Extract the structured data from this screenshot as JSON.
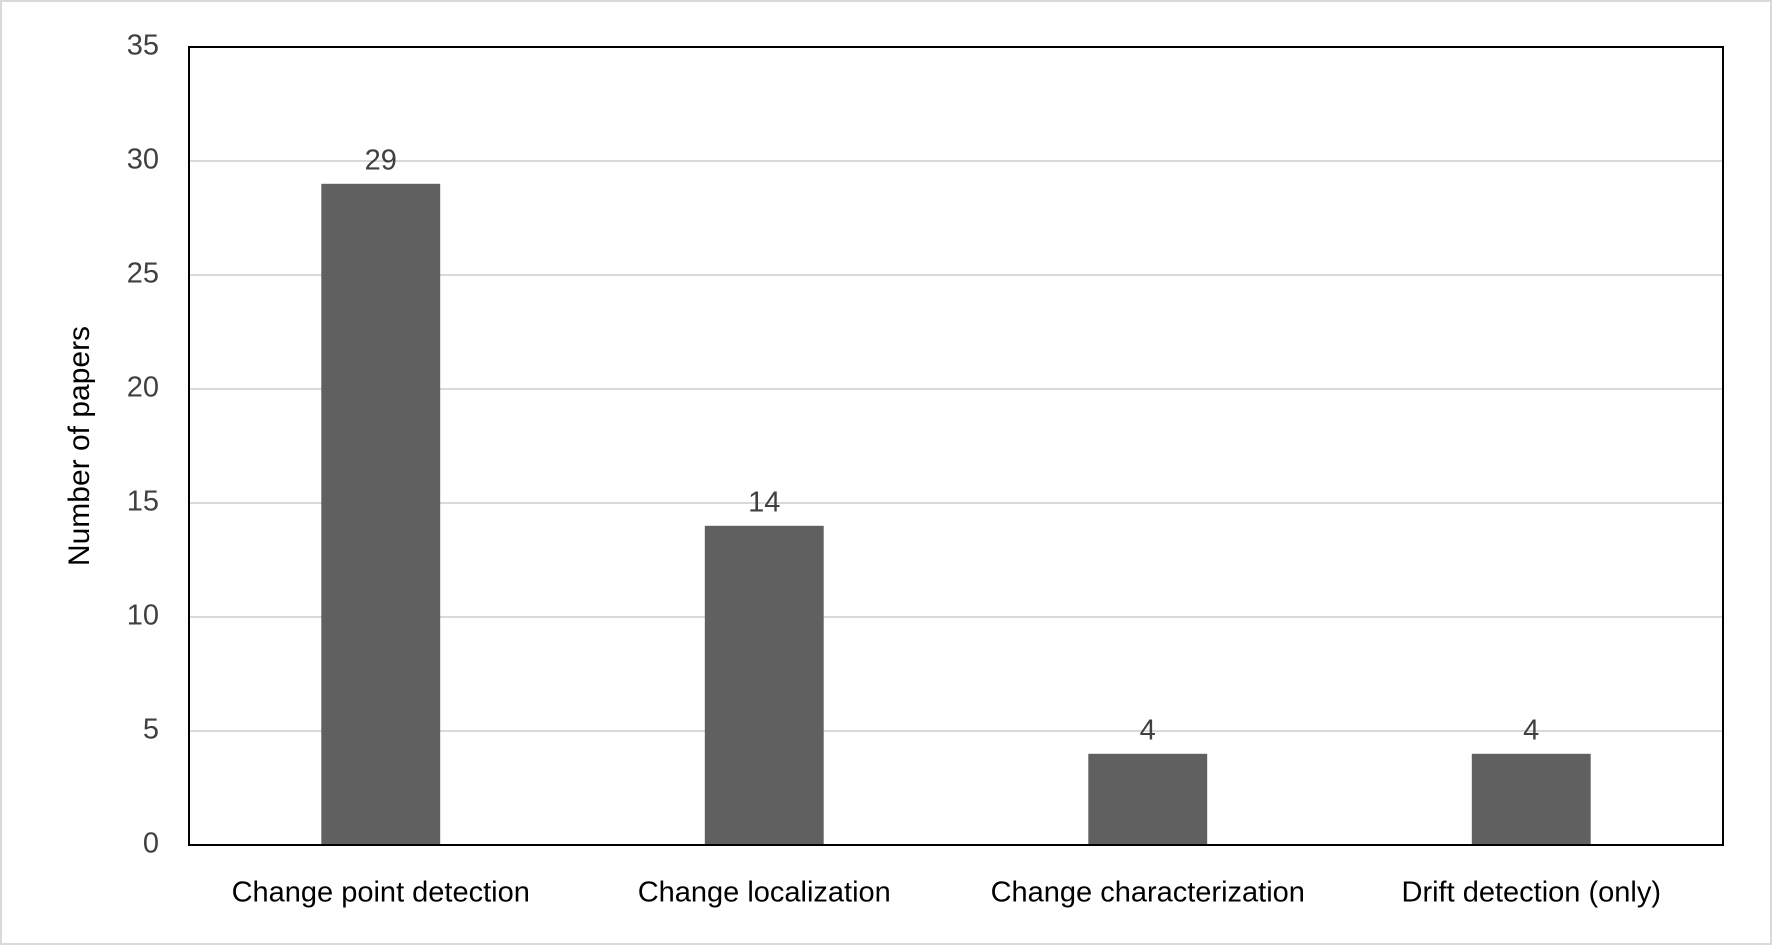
{
  "chart_data": {
    "type": "bar",
    "y_label": "Number of papers",
    "categories": [
      "Change point detection",
      "Change localization",
      "Change characterization",
      "Drift detection (only)"
    ],
    "values": [
      29,
      14,
      4,
      4
    ],
    "color": "#606060",
    "ylim": [
      0,
      35
    ],
    "yticks": [
      0,
      5,
      10,
      15,
      20,
      25,
      30,
      35
    ],
    "grid": true,
    "data_labels": true
  }
}
